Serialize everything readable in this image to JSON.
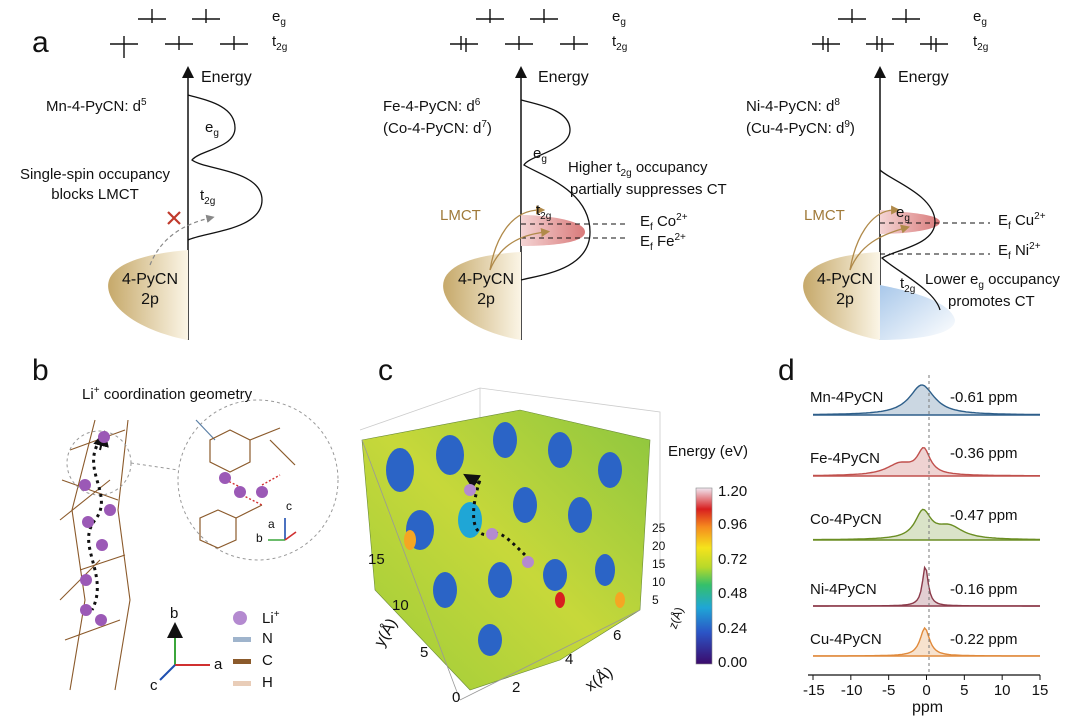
{
  "panels": {
    "a": "a",
    "b": "b",
    "c": "c",
    "d": "d"
  },
  "panel_a": {
    "levels": {
      "eg": "e",
      "eg_sub": "g",
      "t2g": "t",
      "t2g_sub": "2g"
    },
    "energy": "Energy",
    "mn": {
      "title": "Mn-4-PyCN: d",
      "title_sup": "5",
      "note1": "Single-spin occupancy",
      "note2": "blocks LMCT",
      "eg": "e",
      "eg_sub": "g",
      "t2g": "t",
      "t2g_sub": "2g",
      "ligand1": "4-PyCN",
      "ligand2": "2p"
    },
    "fe": {
      "title": "Fe-4-PyCN: d",
      "title_sup": "6",
      "title2": "(Co-4-PyCN: d",
      "title2_sup": "7",
      "title2_end": ")",
      "note1a": "Higher t",
      "note1_sub": "2g",
      "note1b": " occupancy",
      "note2": "partially suppresses CT",
      "lmct": "LMCT",
      "eg": "e",
      "eg_sub": "g",
      "t2g": "t",
      "t2g_sub": "2g",
      "ef_co": "E",
      "ef_co_sub": "f",
      "co": "Co",
      "co_sup": "2+",
      "ef_fe": "E",
      "ef_fe_sub": "f",
      "fe": "Fe",
      "fe_sup": "2+",
      "ligand1": "4-PyCN",
      "ligand2": "2p"
    },
    "ni": {
      "title": "Ni-4-PyCN: d",
      "title_sup": "8",
      "title2": "(Cu-4-PyCN: d",
      "title2_sup": "9",
      "title2_end": ")",
      "lmct": "LMCT",
      "eg": "e",
      "eg_sub": "g",
      "t2g": "t",
      "t2g_sub": "2g",
      "ef_cu": "E",
      "ef_cu_sub": "f",
      "cu": "Cu",
      "cu_sup": "2+",
      "ef_ni": "E",
      "ef_ni_sub": "f",
      "ni": "Ni",
      "ni_sup": "2+",
      "note1a": "Lower e",
      "note1_sub": "g",
      "note1b": " occupancy",
      "note2": "promotes CT",
      "ligand1": "4-PyCN",
      "ligand2": "2p"
    }
  },
  "panel_b": {
    "title": "Li",
    "title_sup": "+",
    "title_end": " coordination geometry",
    "axes": {
      "a": "a",
      "b": "b",
      "c": "c"
    },
    "legend": [
      "Li",
      "N",
      "C",
      "H"
    ],
    "li_sup": "+",
    "colors": {
      "Li": "#9b59b6",
      "N": "#9fb4cc",
      "C": "#8b5a2b",
      "H": "#e9cdb8"
    }
  },
  "panel_c": {
    "colorbar_title": "Energy (eV)",
    "colorbar_ticks": [
      "1.20",
      "0.96",
      "0.72",
      "0.48",
      "0.24",
      "0.00"
    ],
    "y_ticks": [
      "15",
      "10",
      "5",
      "0"
    ],
    "x_ticks": [
      "2",
      "4",
      "6"
    ],
    "z_ticks": [
      "25",
      "20",
      "15",
      "10",
      "5"
    ],
    "ylabel": "y(Å)",
    "xlabel": "x(Å)",
    "zlabel": "z(Å)"
  },
  "chart_data": {
    "type": "line",
    "title": "",
    "xlabel": "ppm",
    "x_ticks": [
      "-15",
      "-10",
      "-5",
      "0",
      "5",
      "10",
      "15"
    ],
    "xlim": [
      -15,
      15
    ],
    "series": [
      {
        "name": "Mn-4PyCN",
        "shift_label": "-0.61 ppm",
        "peak": -0.61,
        "width": 4.0,
        "color": "#2e5f8a"
      },
      {
        "name": "Fe-4PyCN",
        "shift_label": "-0.36 ppm",
        "peak": -0.36,
        "width": 2.0,
        "shoulder": -3.5,
        "color": "#c0504d"
      },
      {
        "name": "Co-4PyCN",
        "shift_label": "-0.47 ppm",
        "peak": -0.47,
        "width": 2.5,
        "shoulder": 3.0,
        "color": "#6b8e23"
      },
      {
        "name": "Ni-4PyCN",
        "shift_label": "-0.16 ppm",
        "peak": -0.16,
        "width": 0.9,
        "color": "#8b3a4a"
      },
      {
        "name": "Cu-4PyCN",
        "shift_label": "-0.22 ppm",
        "peak": -0.22,
        "width": 1.5,
        "color": "#e08a3c"
      }
    ]
  }
}
